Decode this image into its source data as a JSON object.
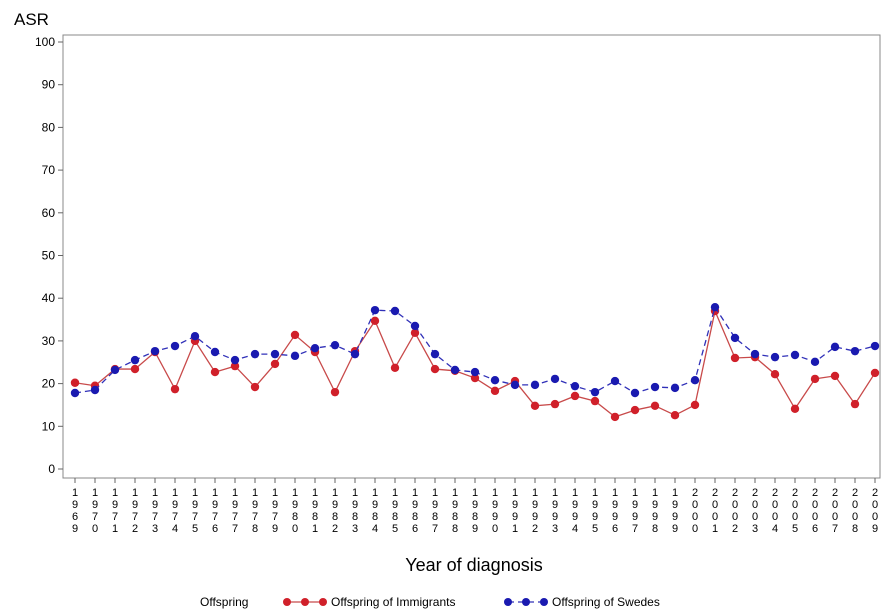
{
  "chart_data": {
    "type": "line",
    "y_label": "ASR",
    "x_label": "Year of diagnosis",
    "legend_title": "Offspring",
    "categories": [
      "1969",
      "1970",
      "1971",
      "1972",
      "1973",
      "1974",
      "1975",
      "1976",
      "1977",
      "1978",
      "1979",
      "1980",
      "1981",
      "1982",
      "1983",
      "1984",
      "1985",
      "1986",
      "1987",
      "1988",
      "1989",
      "1990",
      "1991",
      "1992",
      "1993",
      "1994",
      "1995",
      "1996",
      "1997",
      "1998",
      "1999",
      "2000",
      "2001",
      "2002",
      "2003",
      "2004",
      "2005",
      "2006",
      "2007",
      "2008",
      "2009"
    ],
    "series": [
      {
        "name": "Offspring of Immigrants",
        "color": "#d0202a",
        "line_color": "#c84a4a",
        "dashed": false,
        "values": [
          20.2,
          19.5,
          23.4,
          23.4,
          27.4,
          18.7,
          30,
          22.7,
          24.1,
          19.2,
          24.6,
          31.4,
          27.4,
          18,
          27.6,
          34.7,
          23.7,
          31.9,
          23.4,
          23,
          21.3,
          18.3,
          20.6,
          14.8,
          15.2,
          17.1,
          15.9,
          12.2,
          13.8,
          14.8,
          12.6,
          15,
          37,
          26,
          26.2,
          22.2,
          14.1,
          21.1,
          21.8,
          15.2,
          22.5
        ]
      },
      {
        "name": "Offspring of Swedes",
        "color": "#1a1ab0",
        "line_color": "#3030b8",
        "dashed": true,
        "values": [
          17.8,
          18.5,
          23.2,
          25.5,
          27.6,
          28.8,
          31.1,
          27.4,
          25.5,
          26.9,
          26.9,
          26.5,
          28.3,
          29,
          26.9,
          37.2,
          37,
          33.5,
          26.9,
          23.2,
          22.7,
          20.8,
          19.7,
          19.7,
          21.1,
          19.4,
          18,
          20.6,
          17.8,
          19.2,
          19,
          20.8,
          37.9,
          30.7,
          26.9,
          26.2,
          26.7,
          25.1,
          28.6,
          27.6,
          28.8
        ]
      }
    ],
    "ylim": [
      0,
      100
    ],
    "yticks": [
      0,
      10,
      20,
      30,
      40,
      50,
      60,
      70,
      80,
      90,
      100
    ]
  }
}
